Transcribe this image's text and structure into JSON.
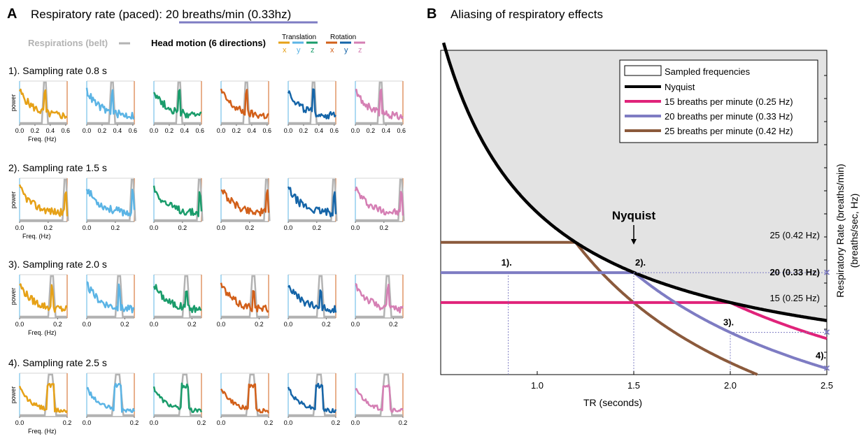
{
  "panelA": {
    "letter": "A",
    "title_prefix": "Respiratory rate (paced): ",
    "title_highlight": "20 breaths/min (0.33hz)",
    "belt_legend": "Respirations (belt)",
    "motion_legend": "Head motion (6 directions)",
    "translation_label": "Translation",
    "rotation_label": "Rotation",
    "axis_letters": [
      "x",
      "y",
      "z",
      "x",
      "y",
      "z"
    ],
    "ylabel": "power",
    "xlabel": "Freq. (Hz)",
    "rows": [
      {
        "label": "1). Sampling rate 0.8 s",
        "ticks": [
          "0.0",
          "0.2",
          "0.4",
          "0.6"
        ],
        "xmax": 0.62,
        "peak": 0.33,
        "peak_width": 0.025
      },
      {
        "label": "2). Sampling rate 1.5 s",
        "ticks": [
          "0.0",
          "0.2"
        ],
        "xmax": 0.333,
        "peak": 0.32,
        "peak_width": 0.012
      },
      {
        "label": "3). Sampling rate 2.0 s",
        "ticks": [
          "0.0",
          "0.2"
        ],
        "xmax": 0.25,
        "peak": 0.17,
        "peak_width": 0.012
      },
      {
        "label": "4). Sampling rate 2.5 s",
        "ticks": [
          "0.0",
          "0.2"
        ],
        "xmax": 0.2,
        "peak": 0.13,
        "peak_width": 0.015
      }
    ],
    "motion_colors": [
      "#e6a117",
      "#5bb4e5",
      "#1a9c6b",
      "#d2601a",
      "#1565a8",
      "#d57fb4"
    ],
    "belt_color": "#b3b3b3",
    "title_underline_color": "#7e7cc3"
  },
  "panelB": {
    "letter": "B",
    "title": "Aliasing of respiratory effects",
    "nyquist_label": "Nyquist",
    "right_labels": [
      "25 (0.42 Hz)",
      "20 (0.33 Hz)",
      "15 (0.25 Hz)"
    ],
    "step_labels": [
      "1).",
      "2).",
      "3).",
      "4)."
    ],
    "chart_data": {
      "type": "line",
      "xlabel": "TR (seconds)",
      "ylabel": "Respiratory Rate (breaths/min)",
      "ylabel2": "(breaths/sec, Hz)",
      "xlim": [
        0.5,
        2.5
      ],
      "ylim": [
        0.05,
        0.95
      ],
      "xticks": [
        "1.0",
        "1.5",
        "2.0",
        "2.5"
      ],
      "legend": [
        "Sampled frequencies",
        "Nyquist",
        "15 breaths per minute (0.25 Hz)",
        "20 breaths per minute (0.33 Hz)",
        "25 breaths per minute (0.42 Hz)"
      ],
      "series": [
        {
          "name": "Nyquist",
          "color": "#000000",
          "formula": "1/(2*TR)"
        },
        {
          "name": "15 breaths per minute (0.25 Hz)",
          "color": "#e0237a",
          "frequency": 0.25
        },
        {
          "name": "20 breaths per minute (0.33 Hz)",
          "color": "#7e7cc3",
          "frequency": 0.333
        },
        {
          "name": "25 breaths per minute (0.42 Hz)",
          "color": "#8b5a3c",
          "frequency": 0.417
        }
      ],
      "sampled_region_color": "#e3e3e3",
      "marker_color": "#7e7cc3",
      "markers": [
        {
          "label": "1).",
          "tr": 0.85
        },
        {
          "label": "2).",
          "tr": 1.5
        },
        {
          "label": "3).",
          "tr": 2.0
        },
        {
          "label": "4).",
          "tr": 2.5
        }
      ]
    }
  }
}
